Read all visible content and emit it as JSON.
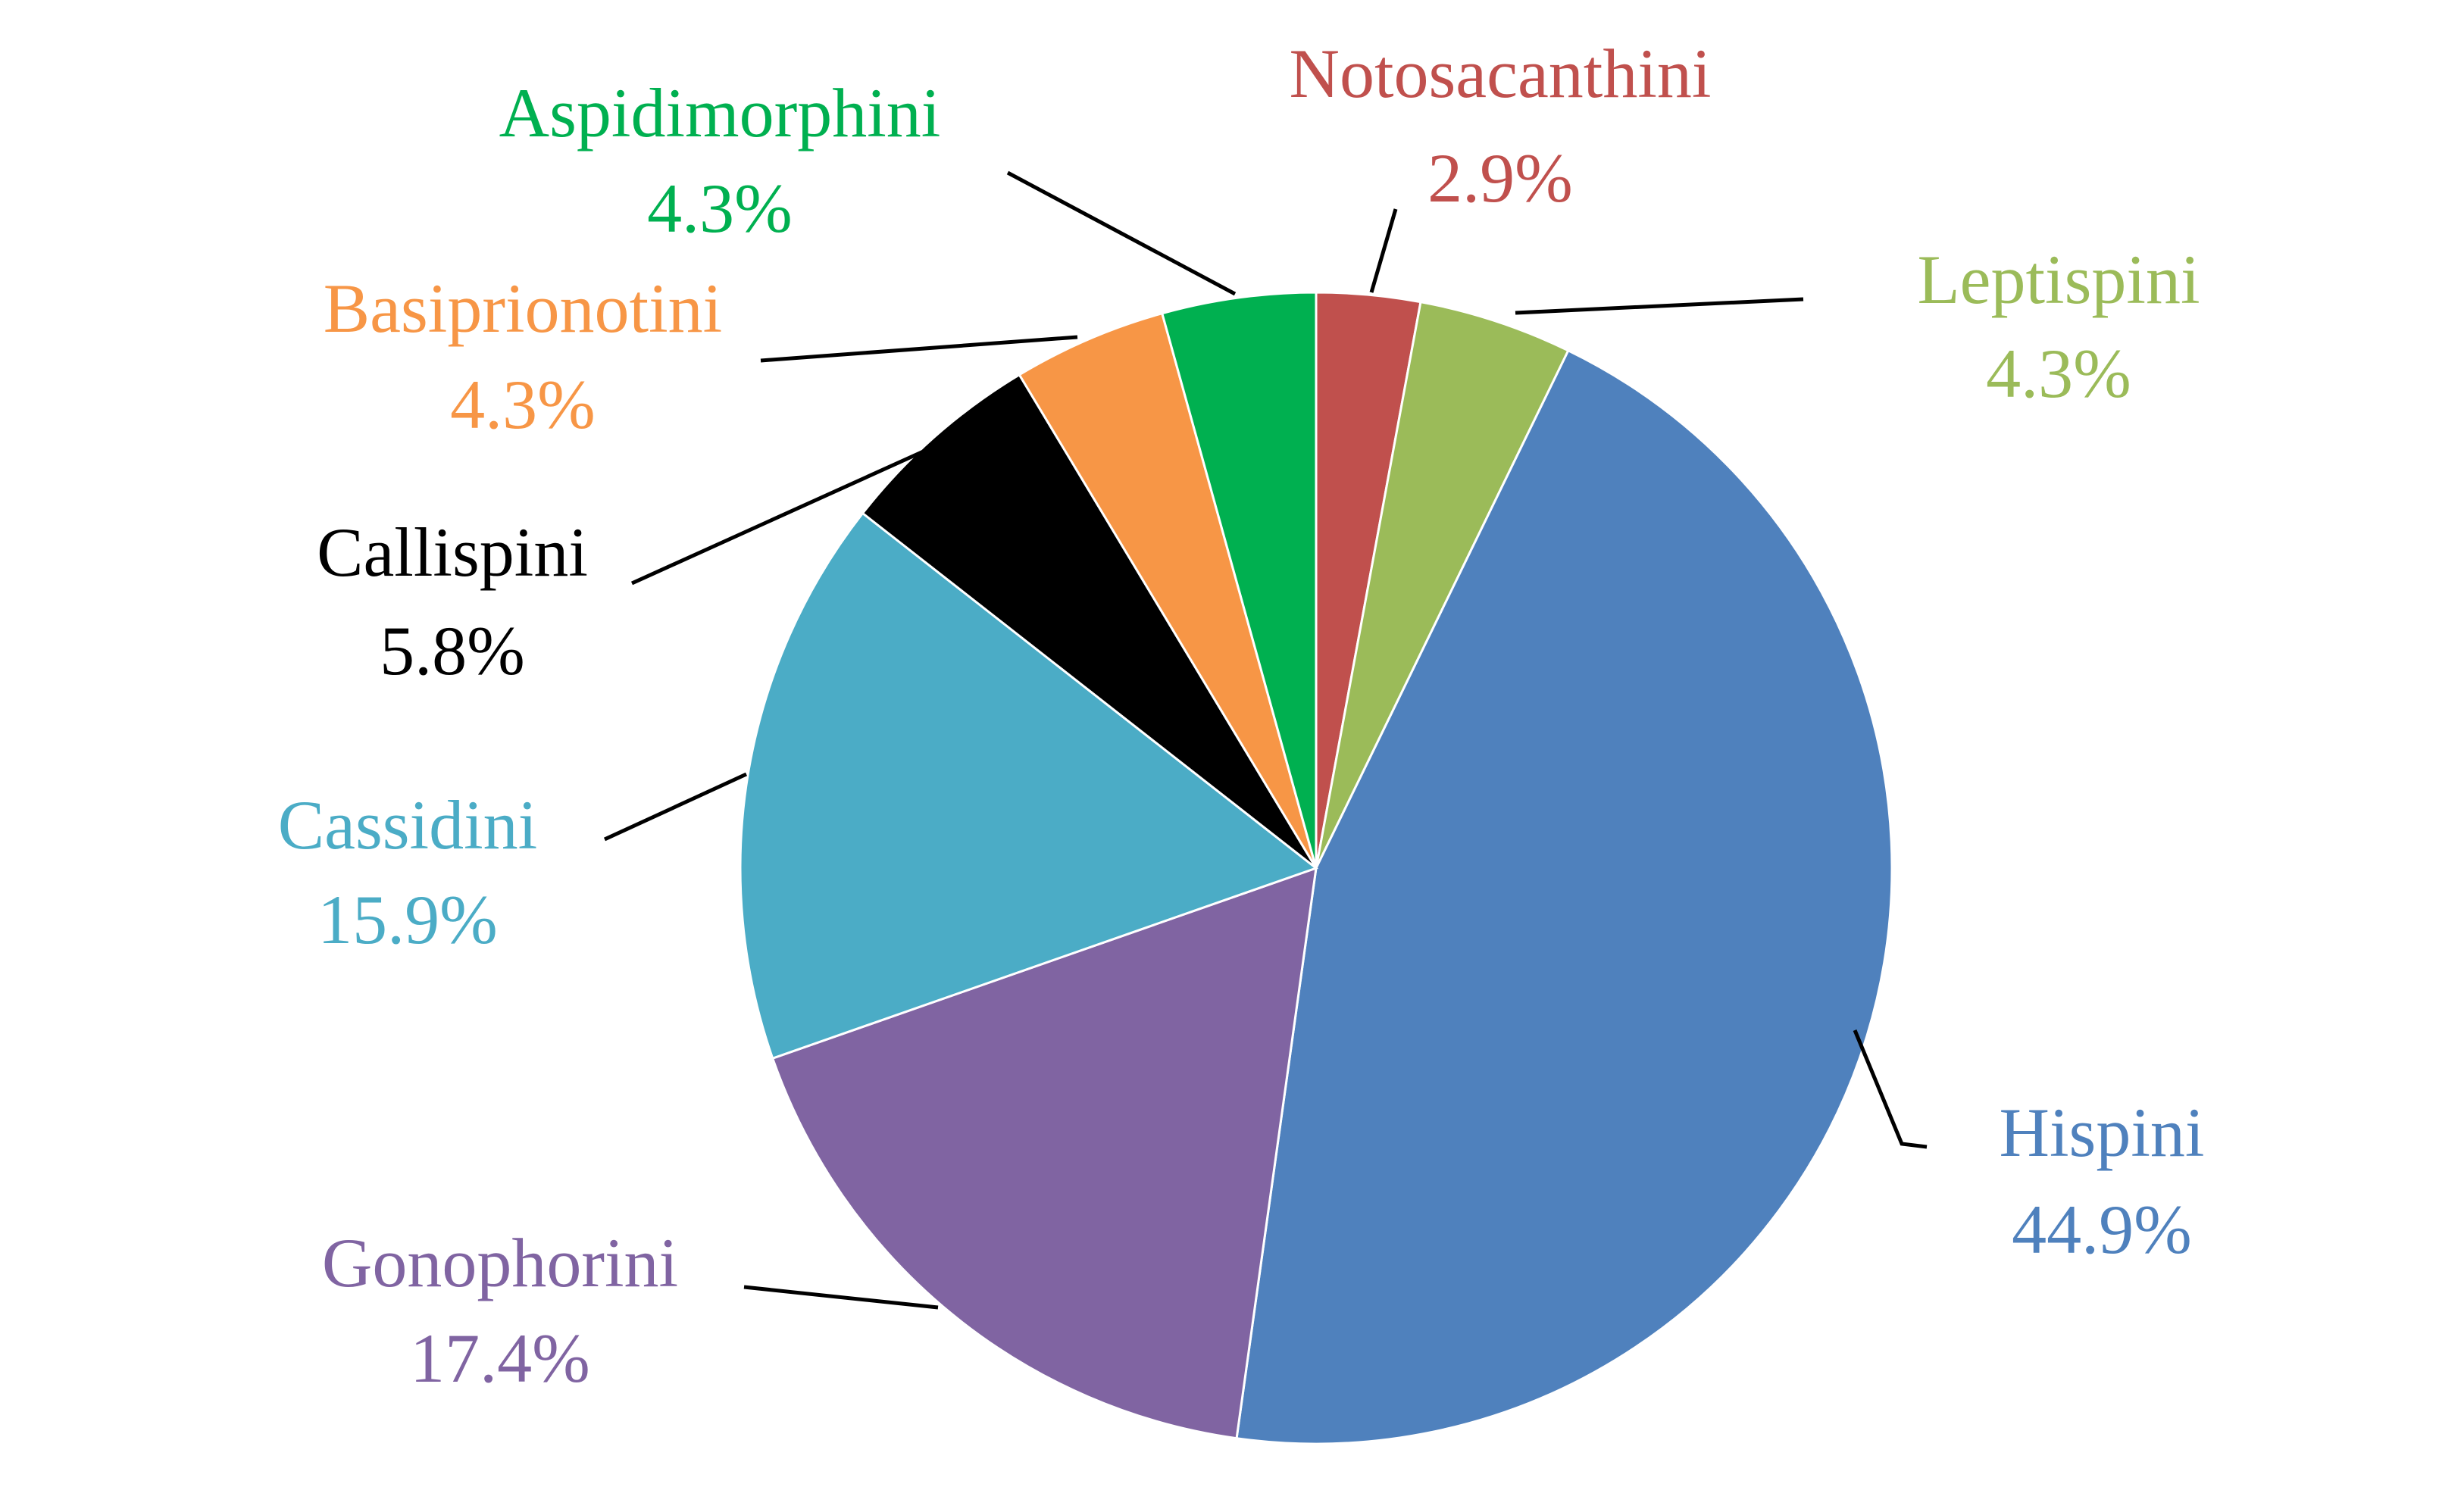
{
  "chart_data": {
    "type": "pie",
    "slices": [
      {
        "label": "Notosacanthini",
        "value": 2.9,
        "value_label": "2.9%",
        "color": "#C0504D"
      },
      {
        "label": "Leptispini",
        "value": 4.3,
        "value_label": "4.3%",
        "color": "#9BBB59"
      },
      {
        "label": "Hispini",
        "value": 44.9,
        "value_label": "44.9%",
        "color": "#4F81BD"
      },
      {
        "label": "Gonophorini",
        "value": 17.4,
        "value_label": "17.4%",
        "color": "#8064A2"
      },
      {
        "label": "Cassidini",
        "value": 15.9,
        "value_label": "15.9%",
        "color": "#4BACC6"
      },
      {
        "label": "Callispini",
        "value": 5.8,
        "value_label": "5.8%",
        "color": "#000000"
      },
      {
        "label": "Basiprionotini",
        "value": 4.3,
        "value_label": "4.3%",
        "color": "#F79646"
      },
      {
        "label": "Aspidimorphini",
        "value": 4.3,
        "value_label": "4.3%",
        "color": "#00B050"
      }
    ],
    "start_angle": "12 o'clock",
    "direction": "clockwise",
    "legend": "none",
    "data_labels": "outside with leader lines"
  }
}
